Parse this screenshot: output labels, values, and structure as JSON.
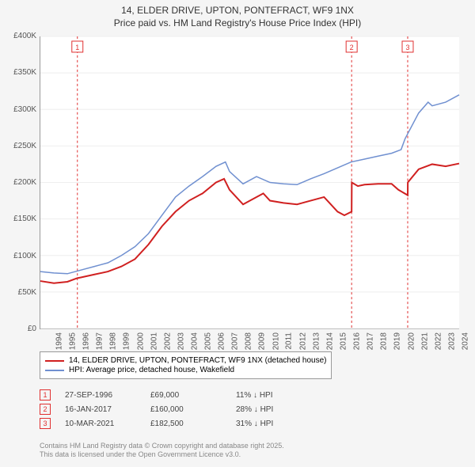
{
  "title": {
    "line1": "14, ELDER DRIVE, UPTON, PONTEFRACT, WF9 1NX",
    "line2": "Price paid vs. HM Land Registry's House Price Index (HPI)",
    "fontsize": 12,
    "color": "#333333"
  },
  "chart": {
    "type": "line",
    "background_color": "#ffffff",
    "outer_background": "#f5f5f5",
    "grid_color": "#eeeeee",
    "axis_color": "#999999",
    "x": {
      "min": 1994,
      "max": 2025,
      "ticks": [
        1994,
        1995,
        1996,
        1997,
        1998,
        1999,
        2000,
        2001,
        2002,
        2003,
        2004,
        2005,
        2006,
        2007,
        2008,
        2009,
        2010,
        2011,
        2012,
        2013,
        2014,
        2015,
        2016,
        2017,
        2018,
        2019,
        2020,
        2021,
        2022,
        2023,
        2024,
        2025
      ],
      "label_fontsize": 10,
      "label_color": "#555555",
      "rotation": -90
    },
    "y": {
      "min": 0,
      "max": 400000,
      "ticks": [
        0,
        50000,
        100000,
        150000,
        200000,
        250000,
        300000,
        350000,
        400000
      ],
      "tick_labels": [
        "£0",
        "£50K",
        "£100K",
        "£150K",
        "£200K",
        "£250K",
        "£300K",
        "£350K",
        "£400K"
      ],
      "label_fontsize": 10,
      "label_color": "#555555"
    },
    "series": [
      {
        "name": "14, ELDER DRIVE, UPTON, PONTEFRACT, WF9 1NX (detached house)",
        "color": "#d02020",
        "line_width": 2,
        "points": [
          [
            1994,
            65000
          ],
          [
            1995,
            62000
          ],
          [
            1996,
            64000
          ],
          [
            1996.74,
            69000
          ],
          [
            1997,
            70000
          ],
          [
            1998,
            74000
          ],
          [
            1999,
            78000
          ],
          [
            2000,
            85000
          ],
          [
            2001,
            95000
          ],
          [
            2002,
            115000
          ],
          [
            2003,
            140000
          ],
          [
            2004,
            160000
          ],
          [
            2005,
            175000
          ],
          [
            2006,
            185000
          ],
          [
            2007,
            200000
          ],
          [
            2007.6,
            205000
          ],
          [
            2008,
            190000
          ],
          [
            2009,
            170000
          ],
          [
            2010,
            180000
          ],
          [
            2010.5,
            185000
          ],
          [
            2011,
            175000
          ],
          [
            2012,
            172000
          ],
          [
            2013,
            170000
          ],
          [
            2014,
            175000
          ],
          [
            2015,
            180000
          ],
          [
            2016,
            160000
          ],
          [
            2016.5,
            155000
          ],
          [
            2017.04,
            160000
          ],
          [
            2017.05,
            200000
          ],
          [
            2017.5,
            195000
          ],
          [
            2018,
            197000
          ],
          [
            2019,
            198000
          ],
          [
            2020,
            198000
          ],
          [
            2020.5,
            190000
          ],
          [
            2021.19,
            182500
          ],
          [
            2021.2,
            200000
          ],
          [
            2022,
            218000
          ],
          [
            2023,
            225000
          ],
          [
            2024,
            222000
          ],
          [
            2025,
            226000
          ]
        ]
      },
      {
        "name": "HPI: Average price, detached house, Wakefield",
        "color": "#7090d0",
        "line_width": 1.5,
        "points": [
          [
            1994,
            78000
          ],
          [
            1995,
            76000
          ],
          [
            1996,
            75000
          ],
          [
            1997,
            80000
          ],
          [
            1998,
            85000
          ],
          [
            1999,
            90000
          ],
          [
            2000,
            100000
          ],
          [
            2001,
            112000
          ],
          [
            2002,
            130000
          ],
          [
            2003,
            155000
          ],
          [
            2004,
            180000
          ],
          [
            2005,
            195000
          ],
          [
            2006,
            208000
          ],
          [
            2007,
            222000
          ],
          [
            2007.7,
            228000
          ],
          [
            2008,
            215000
          ],
          [
            2009,
            198000
          ],
          [
            2010,
            208000
          ],
          [
            2011,
            200000
          ],
          [
            2012,
            198000
          ],
          [
            2013,
            197000
          ],
          [
            2014,
            205000
          ],
          [
            2015,
            212000
          ],
          [
            2016,
            220000
          ],
          [
            2017,
            228000
          ],
          [
            2018,
            232000
          ],
          [
            2019,
            236000
          ],
          [
            2020,
            240000
          ],
          [
            2020.7,
            245000
          ],
          [
            2021,
            260000
          ],
          [
            2022,
            295000
          ],
          [
            2022.7,
            310000
          ],
          [
            2023,
            305000
          ],
          [
            2024,
            310000
          ],
          [
            2025,
            320000
          ]
        ]
      }
    ],
    "markers": [
      {
        "id": "1",
        "x": 1996.74,
        "box_color": "#e03030"
      },
      {
        "id": "2",
        "x": 2017.04,
        "box_color": "#e03030"
      },
      {
        "id": "3",
        "x": 2021.19,
        "box_color": "#e03030"
      }
    ]
  },
  "legend": {
    "border_color": "#999999",
    "fontsize": 10,
    "items": [
      {
        "color": "#d02020",
        "label": "14, ELDER DRIVE, UPTON, PONTEFRACT, WF9 1NX (detached house)"
      },
      {
        "color": "#7090d0",
        "label": "HPI: Average price, detached house, Wakefield"
      }
    ]
  },
  "transactions": {
    "fontsize": 10,
    "marker_border": "#e03030",
    "arrow": "↓",
    "rows": [
      {
        "id": "1",
        "date": "27-SEP-1996",
        "price": "£69,000",
        "diff": "11% ↓ HPI"
      },
      {
        "id": "2",
        "date": "16-JAN-2017",
        "price": "£160,000",
        "diff": "28% ↓ HPI"
      },
      {
        "id": "3",
        "date": "10-MAR-2021",
        "price": "£182,500",
        "diff": "31% ↓ HPI"
      }
    ]
  },
  "footer": {
    "line1": "Contains HM Land Registry data © Crown copyright and database right 2025.",
    "line2": "This data is licensed under the Open Government Licence v3.0.",
    "fontsize": 9,
    "color": "#888888"
  }
}
